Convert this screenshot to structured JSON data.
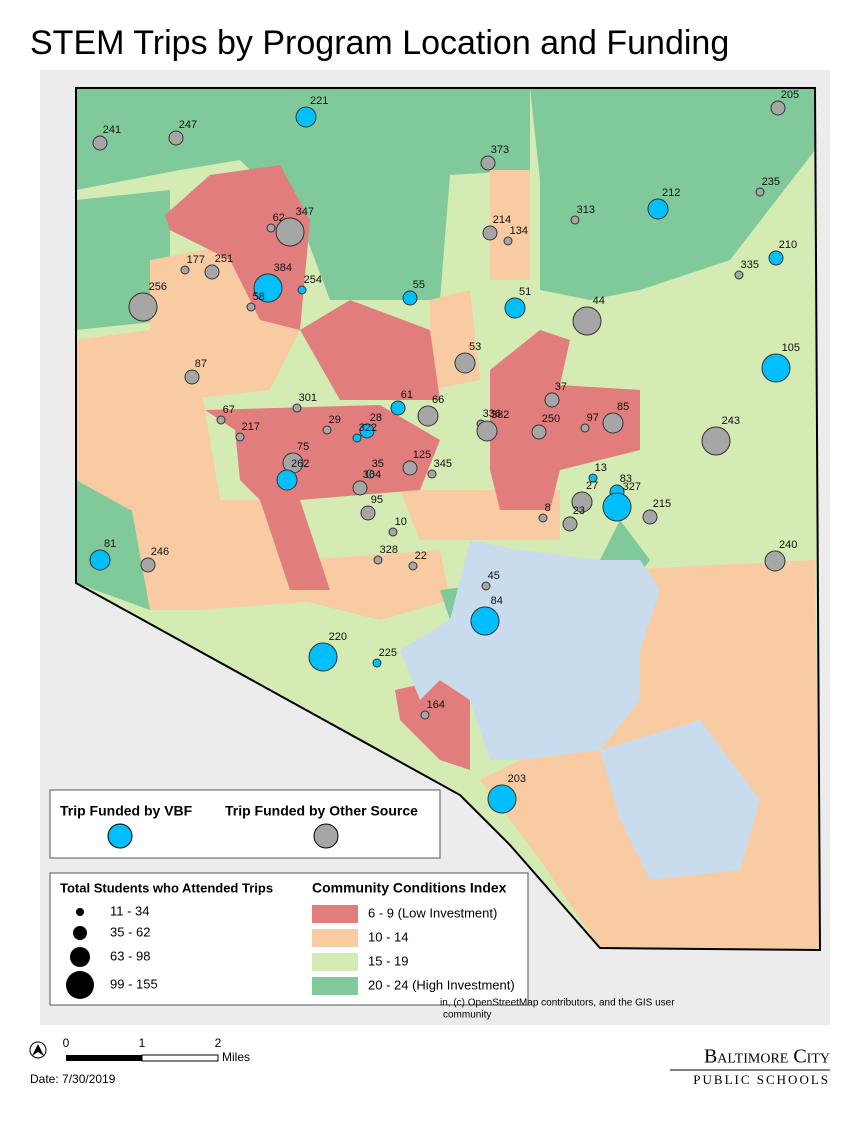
{
  "title": "STEM Trips by Program Location and Funding",
  "funding_legend": [
    {
      "label": "Trip Funded by VBF",
      "color": "#00bfff"
    },
    {
      "label": "Trip Funded by Other Source",
      "color": "#a6a6a6"
    }
  ],
  "size_legend": {
    "title": "Total Students who Attended Trips",
    "items": [
      "11 - 34",
      "35 - 62",
      "63 - 98",
      "99 - 155"
    ]
  },
  "conditions_legend": {
    "title": "Community Conditions Index",
    "items": [
      {
        "label": "6 - 9 (Low Investment)",
        "color": "#e27d7e"
      },
      {
        "label": "10 - 14",
        "color": "#f8cba3"
      },
      {
        "label": "15 - 19",
        "color": "#d4ebb3"
      },
      {
        "label": "20 - 24 (High Investment)",
        "color": "#80c99b"
      }
    ]
  },
  "points": [
    {
      "label": "241",
      "source": 1,
      "size": 1
    },
    {
      "label": "247",
      "source": 1,
      "size": 1
    },
    {
      "label": "221",
      "source": 0,
      "size": 2
    },
    {
      "label": "205",
      "source": 1,
      "size": 1
    },
    {
      "label": "373",
      "source": 1,
      "size": 1
    },
    {
      "label": "235",
      "source": 1,
      "size": 0
    },
    {
      "label": "212",
      "source": 0,
      "size": 2
    },
    {
      "label": "62",
      "source": 1,
      "size": 0
    },
    {
      "label": "347",
      "source": 1,
      "size": 3
    },
    {
      "label": "313",
      "source": 1,
      "size": 0
    },
    {
      "label": "214",
      "source": 1,
      "size": 1
    },
    {
      "label": "134",
      "source": 1,
      "size": 0
    },
    {
      "label": "210",
      "source": 0,
      "size": 1
    },
    {
      "label": "177",
      "source": 1,
      "size": 0
    },
    {
      "label": "251",
      "source": 1,
      "size": 1
    },
    {
      "label": "384",
      "source": 0,
      "size": 3
    },
    {
      "label": "254",
      "source": 0,
      "size": 0
    },
    {
      "label": "335",
      "source": 1,
      "size": 0
    },
    {
      "label": "55",
      "source": 0,
      "size": 1
    },
    {
      "label": "51",
      "source": 0,
      "size": 2
    },
    {
      "label": "44",
      "source": 1,
      "size": 3
    },
    {
      "label": "256",
      "source": 1,
      "size": 3
    },
    {
      "label": "58",
      "source": 1,
      "size": 0
    },
    {
      "label": "53",
      "source": 1,
      "size": 2
    },
    {
      "label": "87",
      "source": 1,
      "size": 1
    },
    {
      "label": "105",
      "source": 0,
      "size": 3
    },
    {
      "label": "301",
      "source": 1,
      "size": 0
    },
    {
      "label": "61",
      "source": 0,
      "size": 1
    },
    {
      "label": "37",
      "source": 1,
      "size": 1
    },
    {
      "label": "67",
      "source": 1,
      "size": 0
    },
    {
      "label": "66",
      "source": 1,
      "size": 2
    },
    {
      "label": "85",
      "source": 1,
      "size": 2
    },
    {
      "label": "336",
      "source": 1,
      "size": 0
    },
    {
      "label": "382",
      "source": 1,
      "size": 2
    },
    {
      "label": "250",
      "source": 1,
      "size": 1
    },
    {
      "label": "97",
      "source": 1,
      "size": 0
    },
    {
      "label": "243",
      "source": 1,
      "size": 3
    },
    {
      "label": "29",
      "source": 1,
      "size": 0
    },
    {
      "label": "28",
      "source": 0,
      "size": 1
    },
    {
      "label": "322",
      "source": 0,
      "size": 0
    },
    {
      "label": "217",
      "source": 1,
      "size": 0
    },
    {
      "label": "75",
      "source": 1,
      "size": 2
    },
    {
      "label": "125",
      "source": 1,
      "size": 1
    },
    {
      "label": "35",
      "source": 1,
      "size": 0
    },
    {
      "label": "345",
      "source": 1,
      "size": 0
    },
    {
      "label": "262",
      "source": 0,
      "size": 2
    },
    {
      "label": "364",
      "source": 1,
      "size": 1
    },
    {
      "label": "13",
      "source": 0,
      "size": 0
    },
    {
      "label": "83",
      "source": 0,
      "size": 1
    },
    {
      "label": "27",
      "source": 1,
      "size": 2
    },
    {
      "label": "327",
      "source": 0,
      "size": 3
    },
    {
      "label": "95",
      "source": 1,
      "size": 1
    },
    {
      "label": "10",
      "source": 1,
      "size": 0
    },
    {
      "label": "8",
      "source": 1,
      "size": 0
    },
    {
      "label": "23",
      "source": 1,
      "size": 1
    },
    {
      "label": "215",
      "source": 1,
      "size": 1
    },
    {
      "label": "240",
      "source": 1,
      "size": 2
    },
    {
      "label": "81",
      "source": 0,
      "size": 2
    },
    {
      "label": "246",
      "source": 1,
      "size": 1
    },
    {
      "label": "328",
      "source": 1,
      "size": 0
    },
    {
      "label": "22",
      "source": 1,
      "size": 0
    },
    {
      "label": "45",
      "source": 1,
      "size": 0
    },
    {
      "label": "84",
      "source": 0,
      "size": 3
    },
    {
      "label": "220",
      "source": 0,
      "size": 3
    },
    {
      "label": "225",
      "source": 0,
      "size": 0
    },
    {
      "label": "164",
      "source": 1,
      "size": 0
    },
    {
      "label": "203",
      "source": 0,
      "size": 3
    }
  ],
  "attribution": [
    "in, (c) OpenStreetMap contributors, and the GIS user",
    "community"
  ],
  "scale": {
    "ticks": [
      "0",
      "1",
      "2"
    ],
    "unit": "Miles"
  },
  "date": "Date: 7/30/2019",
  "logo": [
    "Baltimore City",
    "Public Schools"
  ]
}
